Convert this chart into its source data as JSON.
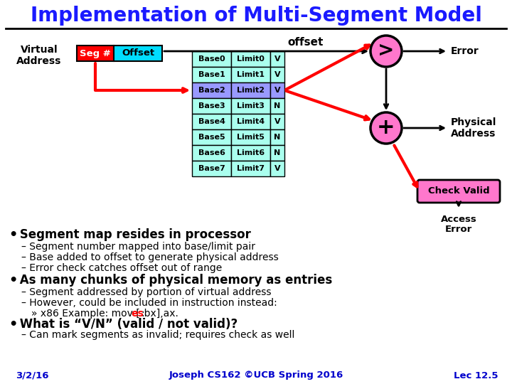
{
  "title": "Implementation of Multi-Segment Model",
  "bg_color": "#ffffff",
  "title_color": "#1a1aff",
  "title_fontsize": 20,
  "table_rows": [
    [
      "Base0",
      "Limit0",
      "V"
    ],
    [
      "Base1",
      "Limit1",
      "V"
    ],
    [
      "Base2",
      "Limit2",
      "V"
    ],
    [
      "Base3",
      "Limit3",
      "N"
    ],
    [
      "Base4",
      "Limit4",
      "V"
    ],
    [
      "Base5",
      "Limit5",
      "N"
    ],
    [
      "Base6",
      "Limit6",
      "N"
    ],
    [
      "Base7",
      "Limit7",
      "V"
    ]
  ],
  "highlight_row": 2,
  "seg_box_color": "#ff0000",
  "offset_box_color": "#00ddff",
  "table_bg": "#aaffee",
  "highlight_row_color": "#9999ff",
  "circle_color": "#ff77cc",
  "check_valid_color": "#ff77cc",
  "footer_color": "#0000cc",
  "footer_text": "Joseph CS162 ©UCB Spring 2016",
  "date_text": "3/2/16",
  "lec_text": "Lec 12.5"
}
